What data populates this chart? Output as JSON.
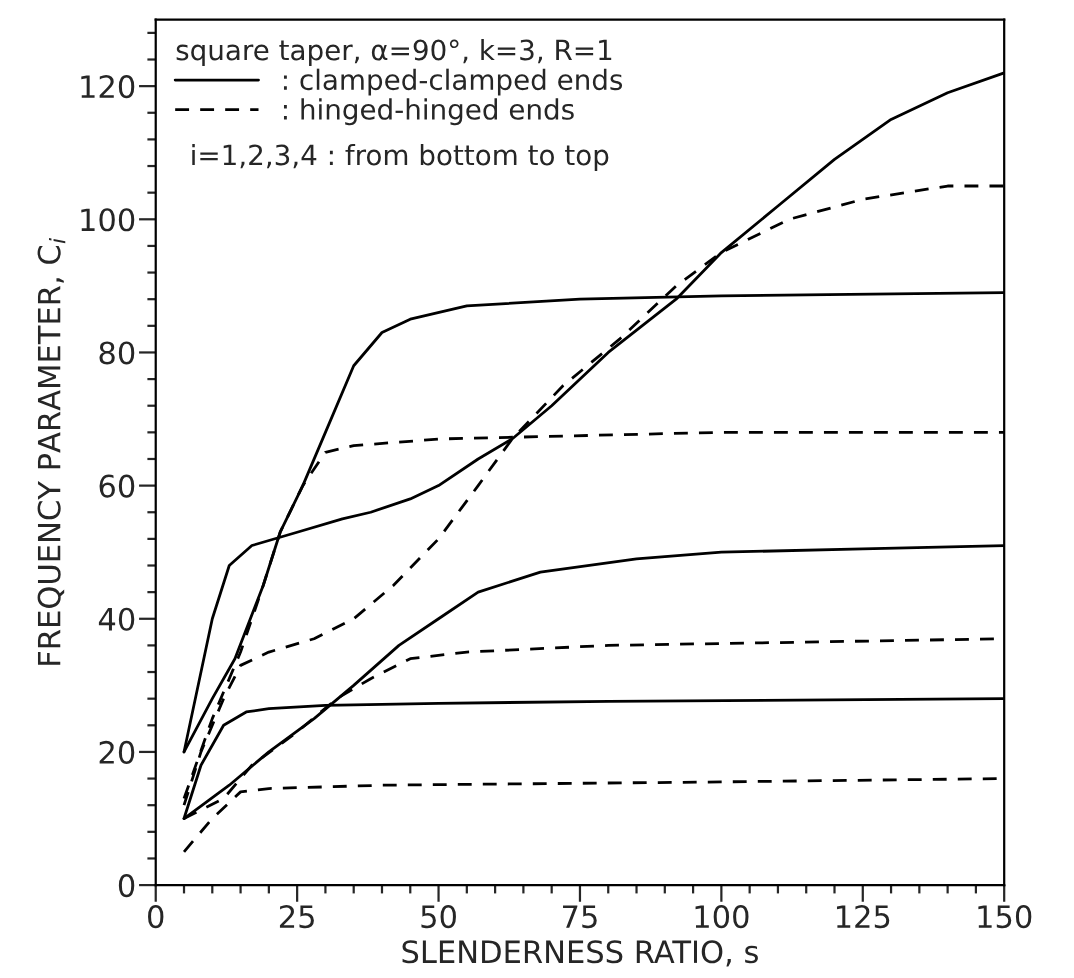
{
  "chart_data": {
    "type": "line",
    "xlabel": "SLENDERNESS RATIO, s",
    "ylabel": "FREQUENCY PARAMETER, C$_{i}$",
    "legend_title": "square taper, α=90°, k=3, R=1",
    "annotations": [
      "i=1,2,3,4 : from bottom to top"
    ],
    "legend": "top left",
    "grid": false,
    "marker": "none",
    "xlim": [
      0,
      150
    ],
    "ylim": [
      0,
      130
    ],
    "xticks": [
      0,
      {
        "value": 5,
        "label": null
      },
      {
        "value": 10,
        "label": null
      },
      {
        "value": 15,
        "label": null
      },
      {
        "value": 20,
        "label": null
      },
      25,
      {
        "value": 30,
        "label": null
      },
      {
        "value": 35,
        "label": null
      },
      {
        "value": 40,
        "label": null
      },
      {
        "value": 45,
        "label": null
      },
      50,
      {
        "value": 55,
        "label": null
      },
      {
        "value": 60,
        "label": null
      },
      {
        "value": 65,
        "label": null
      },
      {
        "value": 70,
        "label": null
      },
      75,
      {
        "value": 80,
        "label": null
      },
      {
        "value": 85,
        "label": null
      },
      {
        "value": 90,
        "label": null
      },
      {
        "value": 95,
        "label": null
      },
      100,
      {
        "value": 105,
        "label": null
      },
      {
        "value": 110,
        "label": null
      },
      {
        "value": 115,
        "label": null
      },
      {
        "value": 120,
        "label": null
      },
      125,
      {
        "value": 130,
        "label": null
      },
      {
        "value": 135,
        "label": null
      },
      {
        "value": 140,
        "label": null
      },
      {
        "value": 145,
        "label": null
      },
      150
    ],
    "yticks": [
      0,
      {
        "value": 4,
        "label": null
      },
      {
        "value": 8,
        "label": null
      },
      {
        "value": 12,
        "label": null
      },
      {
        "value": 16,
        "label": null
      },
      20,
      {
        "value": 24,
        "label": null
      },
      {
        "value": 28,
        "label": null
      },
      {
        "value": 32,
        "label": null
      },
      {
        "value": 36,
        "label": null
      },
      40,
      {
        "value": 44,
        "label": null
      },
      {
        "value": 48,
        "label": null
      },
      {
        "value": 52,
        "label": null
      },
      {
        "value": 56,
        "label": null
      },
      60,
      {
        "value": 64,
        "label": null
      },
      {
        "value": 68,
        "label": null
      },
      {
        "value": 72,
        "label": null
      },
      {
        "value": 76,
        "label": null
      },
      80,
      {
        "value": 84,
        "label": null
      },
      {
        "value": 88,
        "label": null
      },
      {
        "value": 92,
        "label": null
      },
      {
        "value": 96,
        "label": null
      },
      100,
      {
        "value": 104,
        "label": null
      },
      {
        "value": 108,
        "label": null
      },
      {
        "value": 112,
        "label": null
      },
      {
        "value": 116,
        "label": null
      },
      120,
      {
        "value": 124,
        "label": null
      },
      {
        "value": 128,
        "label": null
      }
    ],
    "series": [
      {
        "name": ": clamped-clamped ends",
        "color": "#000000",
        "line_style": "solid",
        "x": [
          5,
          8,
          12,
          16,
          20,
          30,
          50,
          80,
          150
        ],
        "values": [
          10,
          18,
          24,
          26,
          26.5,
          27,
          27.3,
          27.6,
          28
        ]
      },
      {
        "color": "#000000",
        "line_style": "solid",
        "x": [
          5,
          13,
          20,
          28,
          35,
          43,
          50,
          57,
          68,
          85,
          100,
          125,
          150
        ],
        "values": [
          10,
          15,
          20,
          25,
          30,
          36,
          40,
          44,
          47,
          49,
          50,
          50.5,
          51
        ]
      },
      {
        "color": "#000000",
        "line_style": "solid",
        "x": [
          5,
          10,
          13,
          17,
          25,
          33,
          38,
          45,
          50,
          57,
          63,
          70,
          80,
          92,
          100,
          110,
          120,
          130,
          140,
          150
        ],
        "values": [
          20,
          40,
          48,
          51,
          53,
          55,
          56,
          58,
          60,
          64,
          67,
          72,
          80,
          88,
          95,
          102,
          109,
          115,
          119,
          122
        ]
      },
      {
        "color": "#000000",
        "line_style": "solid",
        "x": [
          5,
          10,
          14,
          19,
          22,
          26,
          30,
          35,
          40,
          45,
          55,
          75,
          100,
          150
        ],
        "values": [
          20,
          28,
          34,
          45,
          53,
          60,
          68,
          78,
          83,
          85,
          87,
          88,
          88.5,
          89
        ]
      },
      {
        "name": ": hinged-hinged ends",
        "color": "#000000",
        "line_style": "dashed",
        "x": [
          5,
          10,
          15,
          20,
          40,
          100,
          150
        ],
        "values": [
          5,
          10,
          14,
          14.5,
          15,
          15.5,
          16
        ]
      },
      {
        "color": "#000000",
        "line_style": "dashed",
        "x": [
          5,
          12,
          17,
          25,
          32,
          38,
          45,
          55,
          80,
          150
        ],
        "values": [
          10,
          13,
          18,
          23,
          28,
          31,
          34,
          35,
          36,
          37
        ]
      },
      {
        "color": "#000000",
        "line_style": "dashed",
        "x": [
          5,
          8,
          12,
          15,
          20,
          28,
          35,
          42,
          50,
          57,
          63,
          72,
          82,
          92,
          100,
          112,
          125,
          140,
          150
        ],
        "values": [
          12,
          20,
          28,
          33,
          35,
          37,
          40,
          45,
          52,
          60,
          67,
          75,
          82,
          90,
          95,
          100,
          103,
          105,
          105
        ]
      },
      {
        "color": "#000000",
        "line_style": "dashed",
        "x": [
          5,
          10,
          15,
          19,
          22,
          26,
          30,
          35,
          50,
          100,
          150
        ],
        "values": [
          13,
          25,
          35,
          45,
          53,
          60,
          65,
          66,
          67,
          68,
          68
        ]
      }
    ]
  }
}
